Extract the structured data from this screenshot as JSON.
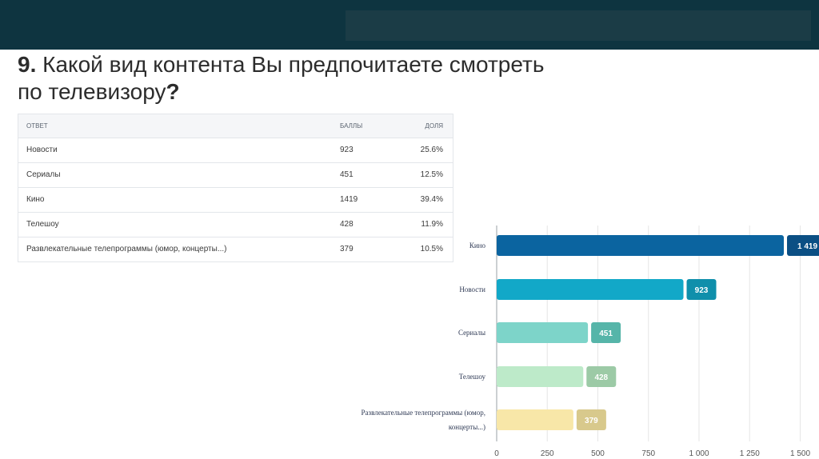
{
  "title": {
    "number": "9.",
    "line1": "Какой вид контента Вы предпочитаете смотреть",
    "line2": "по телевизору",
    "qmark": "?"
  },
  "table": {
    "headers": [
      "ОТВЕТ",
      "БАЛЛЫ",
      "ДОЛЯ"
    ],
    "rows": [
      [
        "Новости",
        "923",
        "25.6%"
      ],
      [
        "Сериалы",
        "451",
        "12.5%"
      ],
      [
        "Кино",
        "1419",
        "39.4%"
      ],
      [
        "Телешоу",
        "428",
        "11.9%"
      ],
      [
        "Развлекательные телепрограммы (юмор, концерты...)",
        "379",
        "10.5%"
      ]
    ]
  },
  "chart_data": {
    "type": "bar",
    "orientation": "horizontal",
    "categories": [
      "Кино",
      "Новости",
      "Сериалы",
      "Телешоу",
      "Развлекательные телепрограммы (юмор, концерты...)"
    ],
    "category_label_lines": [
      [
        "Кино"
      ],
      [
        "Новости"
      ],
      [
        "Сериалы"
      ],
      [
        "Телешоу"
      ],
      [
        "Развлекательные телепрограммы (юмор,",
        "концерты...)"
      ]
    ],
    "values": [
      1419,
      923,
      451,
      428,
      379
    ],
    "value_labels": [
      "1 419",
      "923",
      "451",
      "428",
      "379"
    ],
    "bar_colors": [
      "#0b64a0",
      "#12a8c8",
      "#7dd4c9",
      "#bdeac9",
      "#f8e7a8"
    ],
    "label_colors": [
      "#0b4f84",
      "#0f8fab",
      "#56b5a9",
      "#9ccaa6",
      "#d8c98c"
    ],
    "xticks": [
      0,
      250,
      500,
      750,
      1000,
      1250,
      1500
    ],
    "xtick_labels": [
      "0",
      "250",
      "500",
      "750",
      "1 000",
      "1 250",
      "1 500"
    ],
    "xlim": [
      0,
      1500
    ],
    "grid": true
  }
}
